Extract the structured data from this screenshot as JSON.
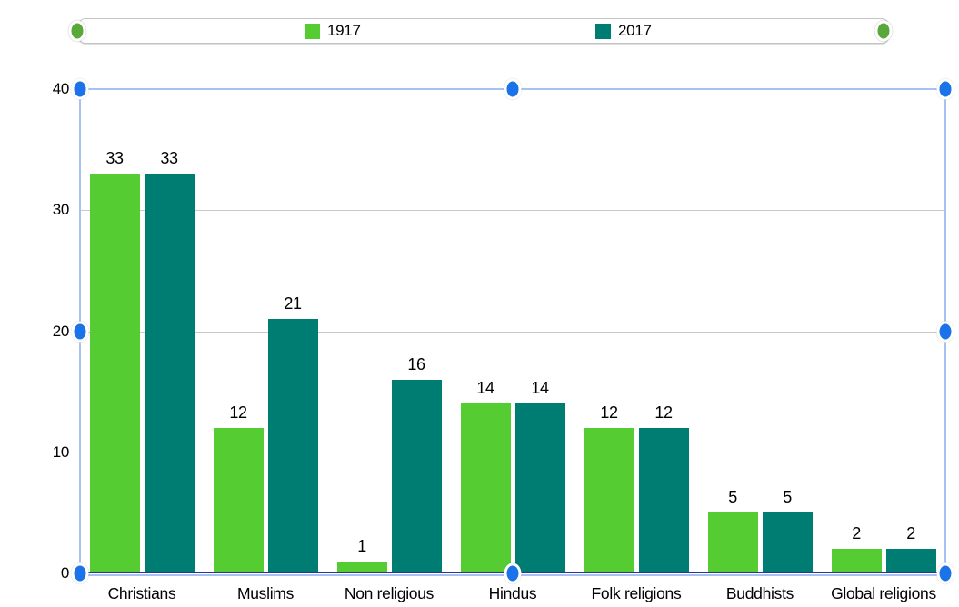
{
  "chart_data": {
    "type": "bar",
    "title": "",
    "categories": [
      "Christians",
      "Muslims",
      "Non religious",
      "Hindus",
      "Folk religions",
      "Buddhists",
      "Global religions"
    ],
    "series": [
      {
        "name": "1917",
        "color": "#55cd32",
        "values": [
          33,
          12,
          1,
          14,
          12,
          5,
          2
        ]
      },
      {
        "name": "2017",
        "color": "#007d72",
        "values": [
          33,
          21,
          16,
          14,
          12,
          5,
          2
        ]
      }
    ],
    "ylim": [
      0,
      40
    ],
    "yticks": [
      0,
      10,
      20,
      30,
      40
    ],
    "grid": "horizontal",
    "legend_position": "top",
    "bar_value_labels_shown": true
  },
  "legend": {
    "items": [
      {
        "label": "1917",
        "color": "#55cd32"
      },
      {
        "label": "2017",
        "color": "#007d72"
      }
    ]
  },
  "editor_overlay": {
    "selection_handle_color": "#1a73e8",
    "selection_border_color": "#a6c1f2",
    "legend_handle_color": "#5aa839",
    "axis_line_color": "#283593",
    "gridline_color": "#c9c9c9"
  }
}
